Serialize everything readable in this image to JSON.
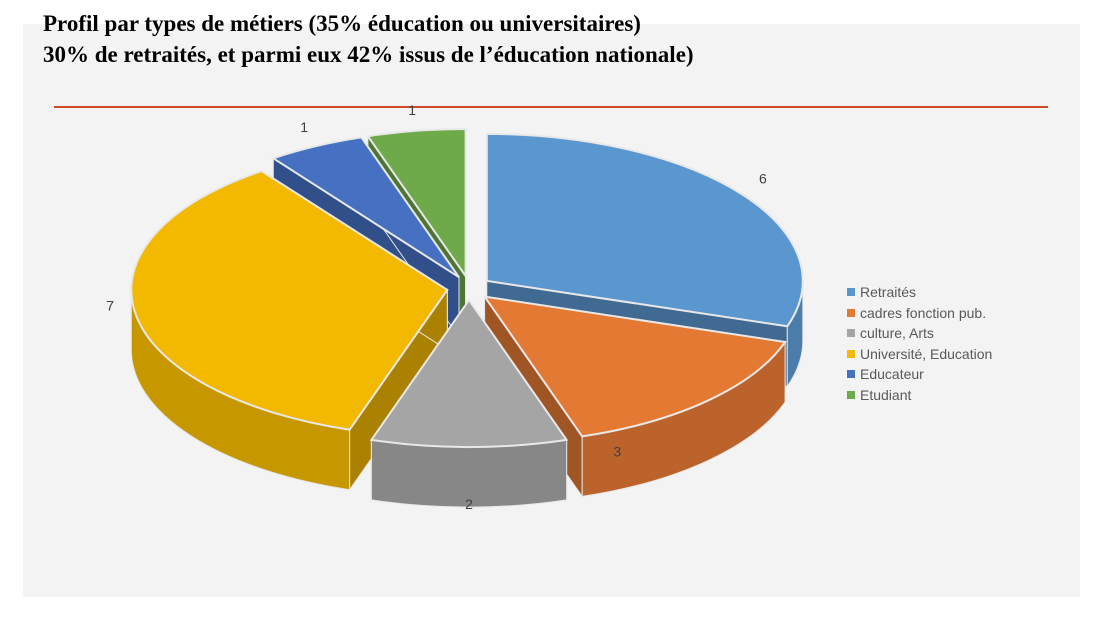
{
  "title": {
    "line1": "Profil par types de métiers (35% éducation ou universitaires)",
    "line2": "30% de retraités, et parmi eux 42% issus de l’éducation nationale)"
  },
  "colors": {
    "rule": "#d04a2a",
    "background": "#f3f3f3"
  },
  "chart_data": {
    "type": "pie",
    "style": "3d-exploded",
    "legend_position": "right",
    "slices": [
      {
        "label": "Retraités",
        "value": 6,
        "color": "#5b97cf"
      },
      {
        "label": "cadres fonction pub.",
        "value": 3,
        "color": "#e47933"
      },
      {
        "label": "culture, Arts",
        "value": 2,
        "color": "#a5a5a5"
      },
      {
        "label": "Université, Education",
        "value": 7,
        "color": "#f3b800"
      },
      {
        "label": "Educateur",
        "value": 1,
        "color": "#4671c3"
      },
      {
        "label": "Etudiant",
        "value": 1,
        "color": "#6ea94a"
      }
    ]
  }
}
